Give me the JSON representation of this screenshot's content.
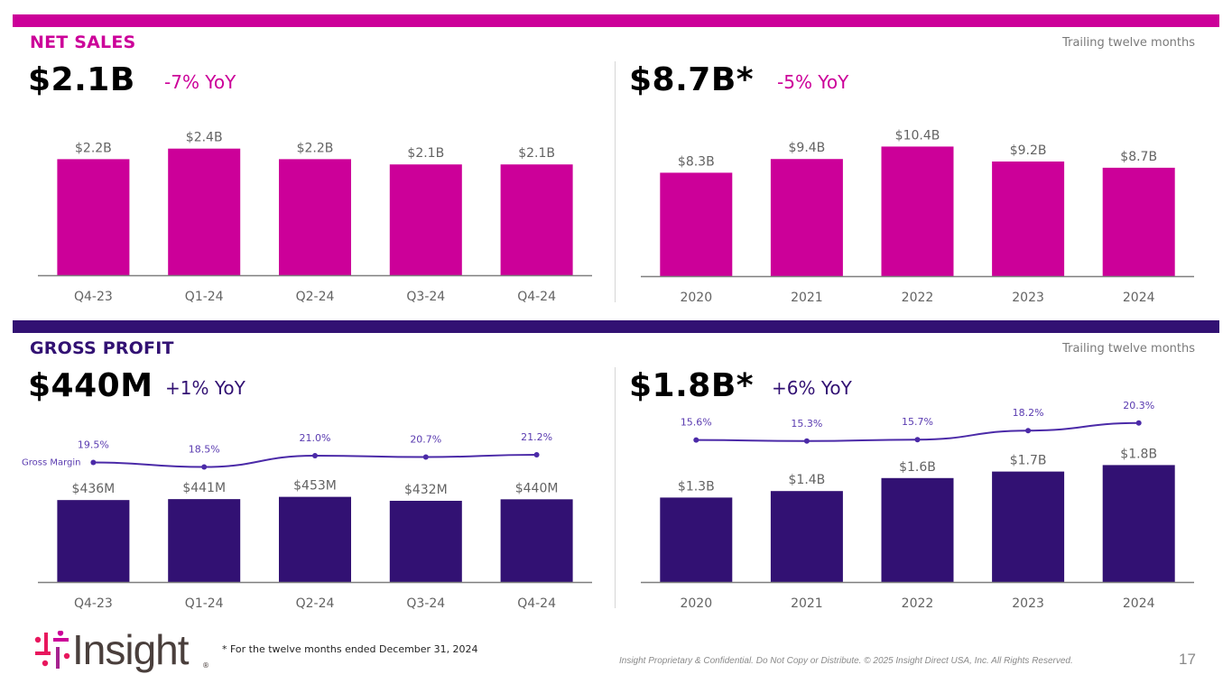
{
  "colors": {
    "net_sales": "#cc0099",
    "gross_profit": "#321173",
    "margin_line": "#4b2aa8",
    "margin_label": "#5a3bb0",
    "axis": "#7f7f7f"
  },
  "net_sales": {
    "title": "NET SALES",
    "ttm_label": "Trailing twelve months",
    "quarterly": {
      "headline": "$2.1B",
      "yoy": "-7% YoY"
    },
    "annual": {
      "headline": "$8.7B*",
      "yoy": "-5% YoY"
    }
  },
  "gross_profit": {
    "title": "GROSS PROFIT",
    "ttm_label": "Trailing twelve months",
    "quarterly": {
      "headline": "$440M",
      "yoy": "+1% YoY"
    },
    "annual": {
      "headline": "$1.8B*",
      "yoy": "+6% YoY"
    }
  },
  "footer": {
    "logo_text": "Insight",
    "logo_reg": "®",
    "footnote": "* For the twelve months ended December 31, 2024",
    "legal": "Insight Proprietary & Confidential. Do Not Copy or Distribute. © 2025 Insight Direct USA, Inc. All Rights Reserved.",
    "page_number": "17"
  },
  "chart_data": [
    {
      "id": "net-sales-quarterly",
      "type": "bar",
      "title": "Net Sales (quarterly)",
      "categories": [
        "Q4-23",
        "Q1-24",
        "Q2-24",
        "Q3-24",
        "Q4-24"
      ],
      "values": [
        2.2,
        2.4,
        2.2,
        2.1,
        2.1
      ],
      "labels": [
        "$2.2B",
        "$2.4B",
        "$2.2B",
        "$2.1B",
        "$2.1B"
      ],
      "unit": "$B",
      "ylim": [
        0,
        2.6
      ],
      "grid": false,
      "color": "#cc0099"
    },
    {
      "id": "net-sales-annual",
      "type": "bar",
      "title": "Net Sales (trailing twelve months)",
      "categories": [
        "2020",
        "2021",
        "2022",
        "2023",
        "2024"
      ],
      "values": [
        8.3,
        9.4,
        10.4,
        9.2,
        8.7
      ],
      "labels": [
        "$8.3B",
        "$9.4B",
        "$10.4B",
        "$9.2B",
        "$8.7B"
      ],
      "unit": "$B",
      "ylim": [
        0,
        11.3
      ],
      "grid": false,
      "color": "#cc0099"
    },
    {
      "id": "gross-profit-quarterly",
      "type": "bar",
      "title": "Gross Profit (quarterly)",
      "categories": [
        "Q4-23",
        "Q1-24",
        "Q2-24",
        "Q3-24",
        "Q4-24"
      ],
      "values": [
        436,
        441,
        453,
        432,
        440
      ],
      "labels": [
        "$436M",
        "$441M",
        "$453M",
        "$432M",
        "$440M"
      ],
      "unit": "$M",
      "ylim": [
        0,
        480
      ],
      "grid": false,
      "color": "#321173",
      "line_series": {
        "name": "Gross Margin",
        "values": [
          19.5,
          18.5,
          21.0,
          20.7,
          21.2
        ],
        "labels": [
          "19.5%",
          "18.5%",
          "21.0%",
          "20.7%",
          "21.2%"
        ],
        "unit": "%",
        "ylim": [
          14,
          26
        ]
      }
    },
    {
      "id": "gross-profit-annual",
      "type": "bar",
      "title": "Gross Profit (trailing twelve months)",
      "categories": [
        "2020",
        "2021",
        "2022",
        "2023",
        "2024"
      ],
      "values": [
        1.3,
        1.4,
        1.6,
        1.7,
        1.8
      ],
      "labels": [
        "$1.3B",
        "$1.4B",
        "$1.6B",
        "$1.7B",
        "$1.8B"
      ],
      "unit": "$B",
      "ylim": [
        0,
        2.5
      ],
      "grid": false,
      "color": "#321173",
      "line_series": {
        "name": "Gross Margin",
        "values": [
          15.6,
          15.3,
          15.7,
          18.2,
          20.3
        ],
        "labels": [
          "15.6%",
          "15.3%",
          "15.7%",
          "18.2%",
          "20.3%"
        ],
        "unit": "%",
        "ylim": [
          5,
          25
        ]
      }
    }
  ]
}
